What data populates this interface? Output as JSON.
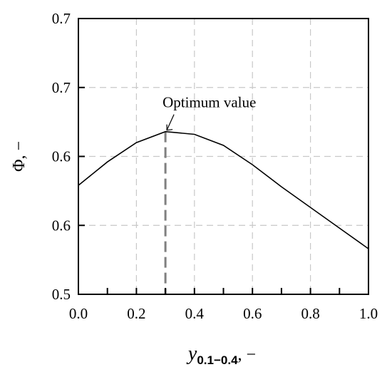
{
  "chart_data": {
    "type": "line",
    "xlabel": {
      "main": "y",
      "sub": "0.1−0.4",
      "suffix": ", −"
    },
    "ylabel": "Φ, −",
    "xlim": [
      0.0,
      1.0
    ],
    "ylim": [
      0.5,
      0.7
    ],
    "x_ticks": [
      {
        "value": 0.0,
        "label": "0.0"
      },
      {
        "value": 0.2,
        "label": "0.2"
      },
      {
        "value": 0.4,
        "label": "0.4"
      },
      {
        "value": 0.6,
        "label": "0.6"
      },
      {
        "value": 0.8,
        "label": "0.8"
      },
      {
        "value": 1.0,
        "label": "1.0"
      }
    ],
    "x_minor_ticks": [
      0.1,
      0.3,
      0.5,
      0.7,
      0.9
    ],
    "y_ticks": [
      {
        "value": 0.5,
        "label": "0.5"
      },
      {
        "value": 0.55,
        "label": "0.6"
      },
      {
        "value": 0.6,
        "label": "0.6"
      },
      {
        "value": 0.65,
        "label": "0.7"
      },
      {
        "value": 0.7,
        "label": "0.7"
      }
    ],
    "grid": true,
    "series": [
      {
        "x": [
          0.0,
          0.1,
          0.2,
          0.3,
          0.4,
          0.5,
          0.6,
          0.7,
          0.8,
          0.9,
          1.0
        ],
        "y": [
          0.579,
          0.596,
          0.61,
          0.618,
          0.616,
          0.608,
          0.594,
          0.578,
          0.563,
          0.548,
          0.533
        ],
        "color": "#000000"
      }
    ],
    "annotations": [
      {
        "text": "Optimum value",
        "x": 0.3,
        "y": 0.618
      }
    ]
  }
}
